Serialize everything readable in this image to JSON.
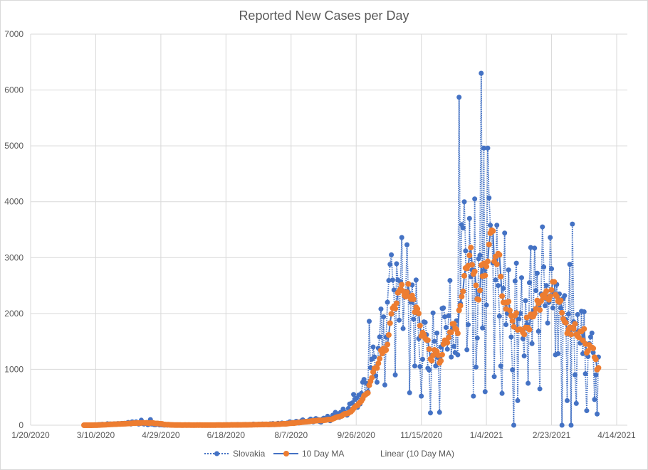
{
  "chart_data": {
    "type": "line",
    "title": "Reported New Cases per Day",
    "xlabel": "",
    "ylabel": "",
    "ylim": [
      0,
      7000
    ],
    "yticks": [
      0,
      1000,
      2000,
      3000,
      4000,
      5000,
      6000,
      7000
    ],
    "xlim": [
      "2020-01-20",
      "2021-04-14"
    ],
    "xtick_labels": [
      "1/20/2020",
      "3/10/2020",
      "4/29/2020",
      "6/18/2020",
      "8/7/2020",
      "9/26/2020",
      "11/15/2020",
      "1/4/2021",
      "2/23/2021",
      "4/14/2021"
    ],
    "xtick_interval_days": 50,
    "grid": true,
    "legend_position": "bottom",
    "start_date": "2020-03-01",
    "ma_window": 10,
    "series": [
      {
        "name": "Slovakia",
        "style": "dotted line with markers",
        "color": "#4472C4",
        "values": [
          0,
          0,
          0,
          0,
          0,
          1,
          2,
          2,
          4,
          3,
          5,
          11,
          11,
          12,
          17,
          11,
          8,
          9,
          27,
          14,
          24,
          19,
          18,
          25,
          23,
          22,
          30,
          21,
          23,
          33,
          30,
          35,
          24,
          40,
          50,
          30,
          20,
          60,
          40,
          30,
          60,
          40,
          20,
          30,
          90,
          30,
          20,
          40,
          50,
          10,
          20,
          100,
          20,
          30,
          10,
          10,
          30,
          20,
          5,
          10,
          5,
          3,
          2,
          8,
          1,
          6,
          3,
          0,
          2,
          4,
          2,
          1,
          5,
          3,
          2,
          0,
          1,
          4,
          3,
          2,
          5,
          1,
          0,
          2,
          3,
          1,
          2,
          6,
          1,
          3,
          0,
          2,
          1,
          2,
          2,
          0,
          5,
          3,
          1,
          2,
          4,
          0,
          6,
          2,
          3,
          1,
          0,
          8,
          5,
          2,
          9,
          3,
          1,
          10,
          4,
          6,
          2,
          0,
          12,
          5,
          8,
          3,
          10,
          6,
          14,
          3,
          8,
          9,
          12,
          5,
          20,
          15,
          7,
          10,
          18,
          14,
          9,
          22,
          6,
          16,
          20,
          12,
          8,
          25,
          18,
          30,
          10,
          14,
          22,
          35,
          20,
          28,
          40,
          30,
          20,
          25,
          40,
          45,
          60,
          38,
          50,
          30,
          55,
          70,
          60,
          40,
          45,
          80,
          95,
          60,
          70,
          55,
          75,
          90,
          110,
          70,
          60,
          95,
          120,
          80,
          100,
          65,
          55,
          110,
          125,
          90,
          100,
          160,
          130,
          80,
          110,
          180,
          140,
          230,
          210,
          160,
          140,
          230,
          195,
          290,
          240,
          210,
          180,
          300,
          380,
          260,
          400,
          550,
          460,
          480,
          320,
          540,
          380,
          570,
          770,
          820,
          540,
          750,
          600,
          1860,
          1030,
          1180,
          1400,
          1220,
          880,
          770,
          1380,
          1580,
          2080,
          1320,
          1940,
          720,
          1580,
          2200,
          2590,
          2880,
          3050,
          2600,
          2420,
          900,
          2890,
          2600,
          1880,
          2570,
          3360,
          1730,
          2300,
          2350,
          3230,
          2380,
          580,
          2200,
          2510,
          1900,
          1060,
          2600,
          2000,
          1550,
          1050,
          520,
          1180,
          1850,
          1840,
          1620,
          1020,
          990,
          220,
          1250,
          2010,
          1500,
          1060,
          1650,
          1210,
          230,
          1400,
          2090,
          2100,
          1940,
          1750,
          1360,
          1960,
          2590,
          1220,
          1730,
          1410,
          1300,
          1870,
          1260,
          5870,
          2180,
          3590,
          3530,
          4000,
          3120,
          1350,
          1800,
          3700,
          2660,
          2780,
          520,
          4050,
          1040,
          1560,
          2980,
          3040,
          6300,
          1740,
          4960,
          600,
          2150,
          4960,
          4070,
          3580,
          3500,
          2900,
          870,
          2600,
          3580,
          2500,
          1950,
          1060,
          570,
          2450,
          3440,
          1800,
          2000,
          2780,
          2000,
          1580,
          990,
          0,
          2580,
          2900,
          440,
          1900,
          2000,
          2640,
          1550,
          1240,
          2230,
          1800,
          750,
          2550,
          3180,
          1460,
          2050,
          3170,
          2410,
          2720,
          1680,
          650,
          2350,
          3550,
          2830,
          2140,
          2500,
          1830,
          2200,
          3360,
          2800,
          2100,
          2350,
          1260,
          2520,
          1280,
          2350,
          2100,
          0,
          2270,
          2320,
          1890,
          440,
          1990,
          2880,
          0,
          3600,
          1850,
          900,
          390,
          1980,
          1690,
          1470,
          2040,
          1280,
          2030,
          920,
          260,
          1230,
          1460,
          1580,
          1650,
          1300,
          460,
          900,
          200,
          1220
        ]
      },
      {
        "name": "10 Day MA",
        "style": "solid line with orange markers",
        "color": "#4472C4",
        "marker_color": "#ED7D31"
      },
      {
        "name": "Linear (10 Day MA)",
        "style": "trendline",
        "color": "#ED7D31"
      }
    ]
  }
}
